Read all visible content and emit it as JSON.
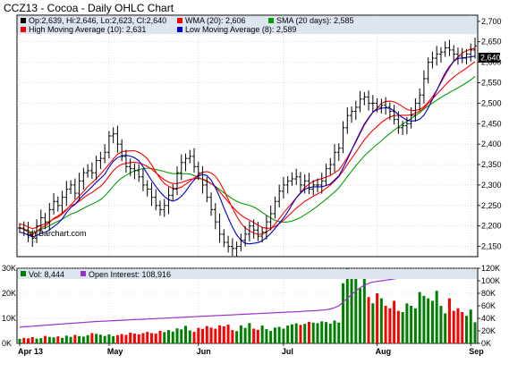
{
  "title": "CCZ13 - Cocoa - Daily OHLC Chart",
  "watermark": "(c) Barchart.com",
  "legend_price": {
    "ohlc": "Op:2,639, Hi:2,646, Lo:2,623, Cl:2,640",
    "wma": "WMA (20): 2,606",
    "sma": "SMA (20 days): 2,585",
    "high_ma": "High Moving Average (10): 2,631",
    "low_ma": "Low Moving Average (8): 2,589"
  },
  "legend_volume": {
    "vol": "Vol: 8,444",
    "oi": "Open Interest: 108,916"
  },
  "last_price_label": "2,640",
  "colors": {
    "ohlc": "#000000",
    "wma": "#ff0000",
    "sma": "#00a000",
    "high_ma": "#ff0000",
    "low_ma": "#0000cc",
    "vol_up": "#008000",
    "vol_down": "#ff0000",
    "open_interest": "#9932cc",
    "legend_bg": "#dde6f0",
    "grid": "#c8c8c8"
  },
  "chart_data": {
    "type": "ohlc",
    "price_axis": {
      "ticks": [
        "2,150",
        "2,200",
        "2,250",
        "2,300",
        "2,350",
        "2,400",
        "2,450",
        "2,500",
        "2,550",
        "2,600",
        "2,650",
        "2,700"
      ],
      "ylim": [
        2125,
        2715
      ],
      "grid": true
    },
    "volume_axis_left": {
      "ticks": [
        "0K",
        "10K",
        "20K",
        "30K"
      ],
      "ylim": [
        0,
        30000
      ]
    },
    "volume_axis_right": {
      "ticks": [
        "0K",
        "20K",
        "40K",
        "60K",
        "80K",
        "100K",
        "120K"
      ],
      "ylim": [
        0,
        120000
      ]
    },
    "x_labels": [
      "Apr 13",
      "May",
      "Jun",
      "Jul",
      "Aug",
      "Sep"
    ],
    "x_label_index": [
      0,
      21,
      42,
      62,
      84,
      106
    ],
    "close": [
      2195,
      2190,
      2178,
      2170,
      2200,
      2220,
      2210,
      2240,
      2260,
      2250,
      2270,
      2290,
      2300,
      2280,
      2310,
      2330,
      2335,
      2330,
      2360,
      2365,
      2380,
      2420,
      2425,
      2400,
      2370,
      2345,
      2340,
      2335,
      2320,
      2300,
      2290,
      2270,
      2250,
      2240,
      2250,
      2275,
      2290,
      2330,
      2355,
      2365,
      2370,
      2345,
      2330,
      2300,
      2270,
      2240,
      2210,
      2180,
      2160,
      2150,
      2145,
      2150,
      2165,
      2180,
      2200,
      2190,
      2175,
      2185,
      2210,
      2230,
      2260,
      2285,
      2300,
      2310,
      2315,
      2320,
      2300,
      2310,
      2290,
      2300,
      2300,
      2310,
      2340,
      2350,
      2380,
      2390,
      2440,
      2470,
      2480,
      2490,
      2510,
      2515,
      2500,
      2500,
      2490,
      2495,
      2490,
      2480,
      2460,
      2440,
      2445,
      2450,
      2470,
      2500,
      2520,
      2560,
      2600,
      2610,
      2620,
      2625,
      2635,
      2630,
      2620,
      2615,
      2610,
      2620,
      2630,
      2640
    ],
    "volume": [
      1800,
      2200,
      2000,
      2500,
      1900,
      2100,
      3000,
      2600,
      2400,
      2800,
      2200,
      3100,
      2600,
      3400,
      2900,
      2700,
      3300,
      4100,
      3800,
      3500,
      3000,
      3600,
      2900,
      3300,
      3700,
      3400,
      4300,
      3900,
      3600,
      4100,
      4600,
      4100,
      3900,
      5000,
      4500,
      5300,
      4700,
      6000,
      5600,
      7000,
      5200,
      4600,
      6200,
      5800,
      6900,
      6300,
      5900,
      7200,
      6800,
      7500,
      5300,
      4900,
      7200,
      6200,
      8100,
      5900,
      5400,
      7100,
      5700,
      5000,
      6300,
      6600,
      5900,
      7100,
      7600,
      8000,
      7400,
      7800,
      8600,
      8300,
      8100,
      8800,
      8500,
      7900,
      9100,
      8300,
      24000,
      30000,
      27000,
      29000,
      22000,
      26000,
      18500,
      16000,
      20000,
      18000,
      15000,
      14000,
      17000,
      13000,
      12500,
      16000,
      15000,
      14000,
      20500,
      19000,
      18000,
      17000,
      21000,
      15000,
      12000,
      18000,
      13000,
      14000,
      12500,
      11000,
      13500,
      8444
    ],
    "open_interest": [
      26000,
      26500,
      27000,
      27500,
      28000,
      28500,
      29000,
      29500,
      30000,
      30500,
      31000,
      31500,
      32000,
      32500,
      33000,
      33500,
      34000,
      34500,
      35000,
      35300,
      35600,
      36000,
      36300,
      36600,
      37000,
      37300,
      37600,
      38000,
      38300,
      38600,
      39000,
      39300,
      39600,
      40000,
      40300,
      40600,
      41000,
      41300,
      41600,
      42000,
      42300,
      42600,
      43000,
      43300,
      43600,
      44000,
      44300,
      44600,
      45000,
      45300,
      45600,
      46000,
      46300,
      46600,
      47000,
      47300,
      47600,
      48000,
      48300,
      48600,
      49000,
      49300,
      49600,
      50000,
      50300,
      50600,
      51000,
      51400,
      51800,
      52200,
      52600,
      53000,
      53800,
      55000,
      57000,
      60000,
      66000,
      72000,
      78000,
      84000,
      89000,
      93000,
      96000,
      98000,
      99000,
      100000,
      101000,
      102000,
      103000,
      104000,
      104500,
      105000,
      105500,
      106000,
      106500,
      107000,
      107400,
      107700,
      108000,
      108200,
      108400,
      108600,
      108700,
      108800,
      108850,
      108880,
      108900,
      108916
    ]
  }
}
